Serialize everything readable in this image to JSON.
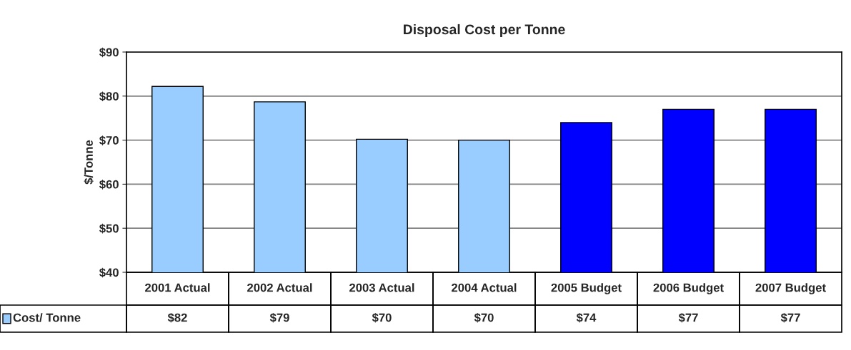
{
  "chart_data": {
    "type": "bar",
    "title": "Disposal Cost per Tonne",
    "ylabel": "$/Tonne",
    "categories": [
      "2001 Actual",
      "2002 Actual",
      "2003 Actual",
      "2004 Actual",
      "2005 Budget",
      "2006 Budget",
      "2007 Budget"
    ],
    "series": [
      {
        "name": "Cost/ Tonne",
        "color": "#99ccff",
        "colors": [
          "#99ccff",
          "#99ccff",
          "#99ccff",
          "#99ccff",
          "#0000ff",
          "#0000ff",
          "#0000ff"
        ],
        "values": [
          82.2,
          78.7,
          70.2,
          70.0,
          74.0,
          77.0,
          77.0
        ],
        "value_labels": [
          "$82",
          "$79",
          "$70",
          "$70",
          "$74",
          "$77",
          "$77"
        ]
      }
    ],
    "ylim": [
      40,
      90
    ],
    "yticks": [
      {
        "value": 40,
        "label": "$40"
      },
      {
        "value": 50,
        "label": "$50"
      },
      {
        "value": 60,
        "label": "$60"
      },
      {
        "value": 70,
        "label": "$70"
      },
      {
        "value": 80,
        "label": "$80"
      },
      {
        "value": 90,
        "label": "$90"
      }
    ],
    "grid": "y",
    "legend": "bottom left"
  }
}
